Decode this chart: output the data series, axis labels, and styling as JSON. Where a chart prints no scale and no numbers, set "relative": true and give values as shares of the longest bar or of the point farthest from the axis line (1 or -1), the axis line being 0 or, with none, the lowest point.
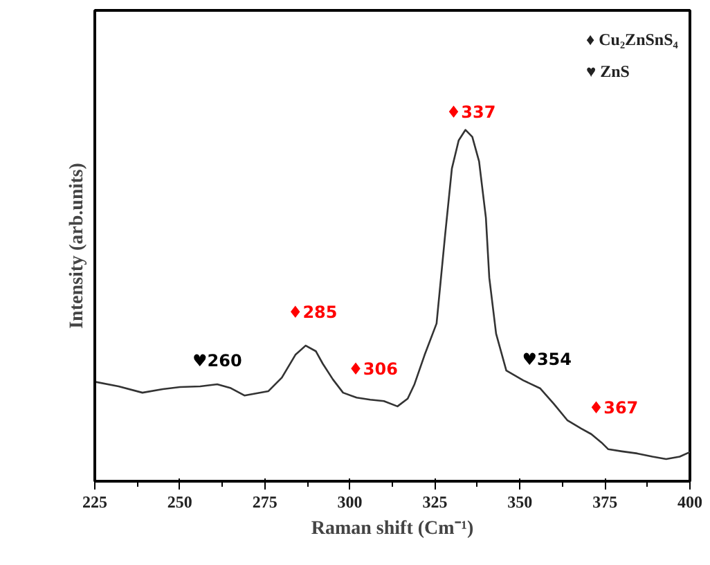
{
  "chart_data": {
    "type": "line",
    "relative": true,
    "xlabel": "Raman shift (Cm⁻¹)",
    "ylabel": "Intensity (arb.units)",
    "xlim": [
      225,
      400
    ],
    "xticks": [
      225,
      250,
      275,
      300,
      325,
      350,
      375,
      400
    ],
    "grid": false,
    "marker": "none",
    "line_style": "solid",
    "series": [
      {
        "color": "#333333",
        "x": [
          225,
          232,
          239,
          245,
          250,
          256,
          261,
          265,
          269,
          276,
          280,
          284,
          287,
          290,
          292,
          295,
          298,
          302,
          306,
          310,
          314,
          317,
          319,
          322,
          325.5,
          328,
          330,
          332,
          334,
          336,
          338,
          340,
          341,
          343,
          346,
          351,
          356,
          360,
          364,
          368,
          371,
          374,
          376,
          380,
          384.5,
          389,
          393,
          397,
          400
        ],
        "values": [
          0.283,
          0.27,
          0.252,
          0.262,
          0.268,
          0.27,
          0.276,
          0.265,
          0.244,
          0.256,
          0.295,
          0.36,
          0.386,
          0.37,
          0.335,
          0.29,
          0.252,
          0.238,
          0.232,
          0.228,
          0.213,
          0.235,
          0.276,
          0.36,
          0.449,
          0.7,
          0.89,
          0.97,
          1.0,
          0.98,
          0.91,
          0.75,
          0.579,
          0.42,
          0.315,
          0.287,
          0.264,
          0.22,
          0.173,
          0.15,
          0.134,
          0.11,
          0.091,
          0.085,
          0.079,
          0.07,
          0.063,
          0.07,
          0.083
        ]
      }
    ],
    "annotations": [
      "♦ Cu₂ZnSnS₄",
      "♥ ZnS",
      {
        "text": "♥260",
        "x": 261,
        "y": 0.276
      },
      {
        "text": "♦285",
        "x": 287,
        "y": 0.386
      },
      {
        "text": "♦306",
        "x": 306,
        "y": 0.232
      },
      {
        "text": "♦337",
        "x": 334,
        "y": 1.0
      },
      {
        "text": "♥354",
        "x": 351,
        "y": 0.287
      },
      {
        "text": "♦367",
        "x": 371,
        "y": 0.134
      }
    ]
  }
}
